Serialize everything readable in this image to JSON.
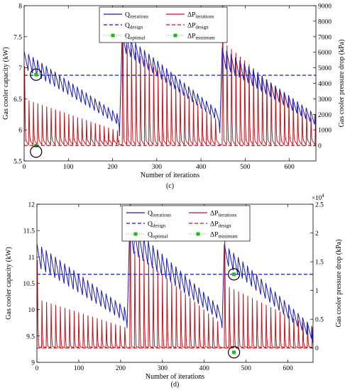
{
  "chart_data": [
    {
      "panel_label": "(c)",
      "type": "line",
      "xlabel": "Number of iterations",
      "ylabel": "Gas cooler capacity (kW)",
      "ylabel_right": "Gas cooler pressure drop (kPa)",
      "xlim": [
        0,
        660
      ],
      "ylim": [
        5.5,
        8
      ],
      "ylim_right": [
        -1000,
        9000
      ],
      "xticks": [
        0,
        100,
        200,
        300,
        400,
        500,
        600
      ],
      "yticks": [
        5.5,
        6,
        6.5,
        7,
        7.5,
        8
      ],
      "yticks_right": [
        0,
        1000,
        2000,
        3000,
        4000,
        5000,
        6000,
        7000,
        8000,
        9000
      ],
      "right_multiplier": "",
      "legend_position": "top-center",
      "legend": [
        {
          "main": "Q",
          "sub": "iterations",
          "style": "solid",
          "color": "#1a1ab8"
        },
        {
          "main": "ΔP",
          "sub": "iterations",
          "style": "solid",
          "color": "#c0141c"
        },
        {
          "main": "Q",
          "sub": "design",
          "style": "dashed",
          "color": "#1a1ab8"
        },
        {
          "main": "ΔP",
          "sub": "design",
          "style": "dashed",
          "color": "#c0141c"
        },
        {
          "main": "Q",
          "sub": "optimal",
          "style": "marker",
          "color": "#22b822"
        },
        {
          "main": "ΔP",
          "sub": "minimum",
          "style": "marker",
          "color": "#22b822"
        }
      ],
      "q_design": 6.88,
      "dp_design": 0,
      "q_optimal": {
        "x": 27,
        "y": 6.89
      },
      "dp_minimum": {
        "x": 27,
        "y": -10
      },
      "q_segments": [
        {
          "start": 0,
          "end": 215,
          "q_start": 7.2,
          "q_end": 6.2,
          "amp_start": 0.45,
          "amp_end": 0.3
        },
        {
          "start": 222,
          "end": 442,
          "q_start": 7.5,
          "q_end": 6.25,
          "amp_start": 0.5,
          "amp_end": 0.3
        },
        {
          "start": 448,
          "end": 660,
          "q_start": 7.25,
          "q_end": 6.2,
          "amp_start": 0.5,
          "amp_end": 0.3
        }
      ],
      "dp_segments": [
        {
          "start": 0,
          "end": 215,
          "peak_start": 3000,
          "peak_end": 900
        },
        {
          "start": 222,
          "end": 442,
          "peak_start": 6700,
          "peak_end": 1500
        },
        {
          "start": 448,
          "end": 660,
          "peak_start": 6700,
          "peak_end": 1500
        }
      ],
      "dp_cycle": 10,
      "q_cycle": 10,
      "circles": [
        {
          "x": 27,
          "y": 6.89,
          "axis": "left"
        },
        {
          "x": 27,
          "y": 5.65,
          "axis": "left"
        }
      ]
    },
    {
      "panel_label": "(d)",
      "type": "line",
      "xlabel": "Number of iterations",
      "ylabel": "Gas cooler capacity (kW)",
      "ylabel_right": "Gas cooler pressure drop (kPa)",
      "xlim": [
        0,
        660
      ],
      "ylim": [
        9,
        12
      ],
      "ylim_right": [
        -2500,
        25000
      ],
      "xticks": [
        0,
        100,
        200,
        300,
        400,
        500,
        600
      ],
      "yticks": [
        9,
        9.5,
        10,
        10.5,
        11,
        11.5,
        12
      ],
      "yticks_right": [
        0,
        0.5,
        1,
        1.5,
        2,
        2.5
      ],
      "right_multiplier": "×10",
      "right_multiplier_exp": "4",
      "legend_position": "top-center",
      "legend": [
        {
          "main": "Q",
          "sub": "iterations",
          "style": "solid",
          "color": "#1a1ab8"
        },
        {
          "main": "ΔP",
          "sub": "iterations",
          "style": "solid",
          "color": "#c0141c"
        },
        {
          "main": "Q",
          "sub": "design",
          "style": "dashed",
          "color": "#1a1ab8"
        },
        {
          "main": "ΔP",
          "sub": "design",
          "style": "dashed",
          "color": "#c0141c"
        },
        {
          "main": "Q",
          "sub": "optimal",
          "style": "marker",
          "color": "#22b822"
        },
        {
          "main": "ΔP",
          "sub": "minimum",
          "style": "marker",
          "color": "#22b822"
        }
      ],
      "q_design": 10.67,
      "dp_design": 0,
      "q_optimal": {
        "x": 471,
        "y": 10.67
      },
      "dp_minimum": {
        "x": 471,
        "y": 9.19
      },
      "q_segments": [
        {
          "start": 0,
          "end": 215,
          "q_start": 11.15,
          "q_end": 9.95,
          "amp_start": 0.7,
          "amp_end": 0.45
        },
        {
          "start": 222,
          "end": 442,
          "q_start": 11.5,
          "q_end": 9.95,
          "amp_start": 0.8,
          "amp_end": 0.45
        },
        {
          "start": 448,
          "end": 660,
          "q_start": 11.15,
          "q_end": 9.6,
          "amp_start": 0.6,
          "amp_end": 0.45
        }
      ],
      "dp_segments": [
        {
          "start": 0,
          "end": 215,
          "peak_start": 8500,
          "peak_end": 3500
        },
        {
          "start": 222,
          "end": 442,
          "peak_start": 17500,
          "peak_end": 4000
        },
        {
          "start": 448,
          "end": 660,
          "peak_start": 11000,
          "peak_end": 3500
        }
      ],
      "dp_cycle": 11,
      "q_cycle": 11,
      "circles": [
        {
          "x": 471,
          "y": 10.67,
          "axis": "left"
        },
        {
          "x": 471,
          "y": 9.19,
          "axis": "left"
        }
      ]
    }
  ]
}
